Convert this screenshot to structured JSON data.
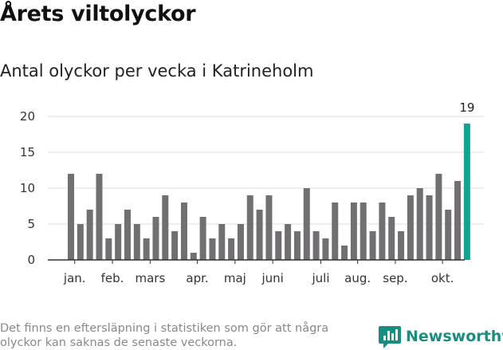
{
  "header": {
    "title": "Årets viltolyckor",
    "subtitle": "Antal olyckor per vecka i Katrineholm"
  },
  "footer": {
    "note": "Det finns en eftersläpning i statistiken som gör att några olyckor kan saknas de senaste veckorna.",
    "brand": "Newsworthy"
  },
  "colors": {
    "bar": "#716f72",
    "highlight": "#10a396",
    "grid": "#dddddd",
    "axis": "#333333",
    "brand": "#1b8c80"
  },
  "chart_data": {
    "type": "bar",
    "title": "Antal olyckor per vecka i Katrineholm",
    "xlabel": "",
    "ylabel": "",
    "ylim": [
      0,
      20
    ],
    "yticks": [
      0,
      5,
      10,
      15,
      20
    ],
    "grid": true,
    "weeks": [
      1,
      2,
      3,
      4,
      5,
      6,
      7,
      8,
      9,
      10,
      11,
      12,
      13,
      14,
      15,
      16,
      17,
      18,
      19,
      20,
      21,
      22,
      23,
      24,
      25,
      26,
      27,
      28,
      29,
      30,
      31,
      32,
      33,
      34,
      35,
      36,
      37,
      38,
      39,
      40,
      41,
      42,
      43
    ],
    "values": [
      12,
      5,
      7,
      12,
      3,
      5,
      7,
      5,
      3,
      6,
      9,
      4,
      8,
      1,
      6,
      3,
      5,
      3,
      5,
      9,
      7,
      9,
      4,
      5,
      4,
      10,
      4,
      3,
      8,
      2,
      8,
      8,
      4,
      8,
      6,
      4,
      9,
      10,
      9,
      12,
      7,
      11,
      19
    ],
    "highlight_index": 42,
    "highlight_label": "19",
    "month_labels": [
      {
        "label": "jan.",
        "week": 1.4
      },
      {
        "label": "feb.",
        "week": 5.4
      },
      {
        "label": "mars",
        "week": 9.4
      },
      {
        "label": "apr.",
        "week": 14.4
      },
      {
        "label": "maj",
        "week": 18.4
      },
      {
        "label": "juni",
        "week": 22.4
      },
      {
        "label": "juli",
        "week": 27.5
      },
      {
        "label": "aug.",
        "week": 31.4
      },
      {
        "label": "sep.",
        "week": 35.4
      },
      {
        "label": "okt.",
        "week": 40.4
      }
    ]
  }
}
